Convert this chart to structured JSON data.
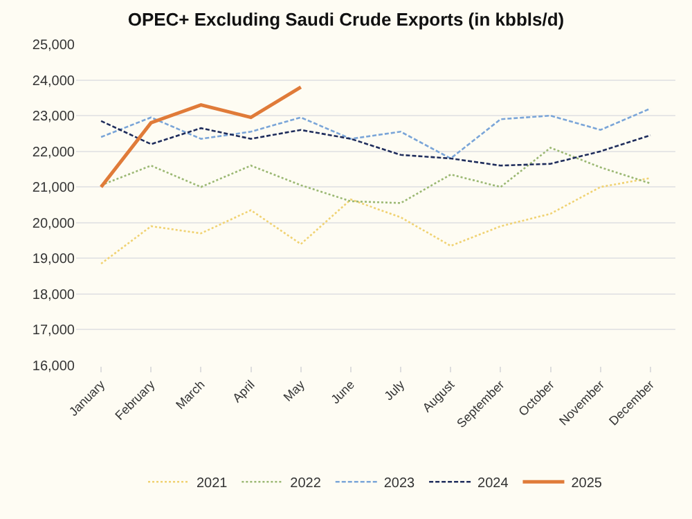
{
  "chart_data": {
    "type": "line",
    "title": "OPEC+ Excluding Saudi Crude Exports (in kbbls/d)",
    "categories": [
      "January",
      "February",
      "March",
      "April",
      "May",
      "June",
      "July",
      "August",
      "September",
      "October",
      "November",
      "December"
    ],
    "series": [
      {
        "name": "2021",
        "color": "#f0d272",
        "line_style": "dotted",
        "values": [
          18850,
          19900,
          19700,
          20350,
          19400,
          20650,
          20150,
          19350,
          19900,
          20250,
          21000,
          21250
        ]
      },
      {
        "name": "2022",
        "color": "#9bb873",
        "line_style": "dotted",
        "values": [
          21050,
          21600,
          21000,
          21600,
          21050,
          20600,
          20550,
          21350,
          21000,
          22100,
          21550,
          21100
        ]
      },
      {
        "name": "2023",
        "color": "#7aa5d8",
        "line_style": "dashed",
        "values": [
          22400,
          22950,
          22350,
          22550,
          22950,
          22350,
          22550,
          21800,
          22900,
          23000,
          22600,
          23200
        ]
      },
      {
        "name": "2024",
        "color": "#1f2d5c",
        "line_style": "dashed",
        "values": [
          22850,
          22200,
          22650,
          22350,
          22600,
          22350,
          21900,
          21800,
          21600,
          21650,
          22000,
          22450
        ]
      },
      {
        "name": "2025",
        "color": "#e07b39",
        "line_style": "solid",
        "values": [
          21000,
          22800,
          23300,
          22950,
          23800,
          null,
          null,
          null,
          null,
          null,
          null,
          null
        ]
      }
    ],
    "ylim": [
      16000,
      25000
    ],
    "yticks": [
      {
        "value": 16000,
        "label": "16,000"
      },
      {
        "value": 17000,
        "label": "17,000"
      },
      {
        "value": 18000,
        "label": "18,000"
      },
      {
        "value": 19000,
        "label": "19,000"
      },
      {
        "value": 20000,
        "label": "20,000"
      },
      {
        "value": 21000,
        "label": "21,000"
      },
      {
        "value": 22000,
        "label": "22,000"
      },
      {
        "value": 23000,
        "label": "23,000"
      },
      {
        "value": 24000,
        "label": "24,000"
      },
      {
        "value": 25000,
        "label": "25,000"
      }
    ],
    "grid": "y",
    "legend": "bottom",
    "marker": "none"
  }
}
